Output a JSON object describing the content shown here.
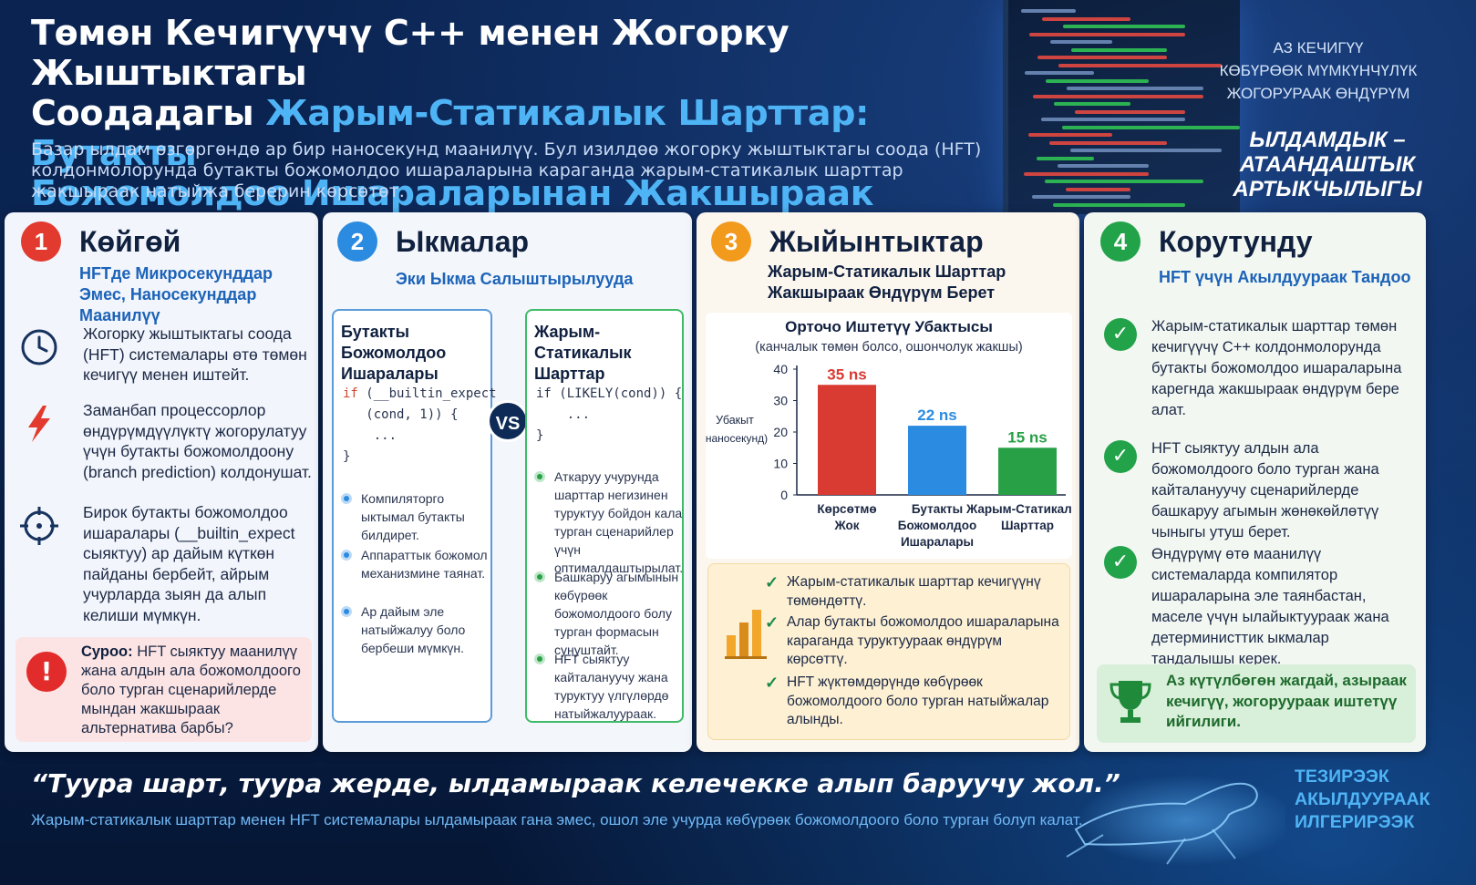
{
  "header": {
    "title_line1": "Төмөн Кечигүүчү C++ менен Жогорку Жыштыктагы",
    "title_line2_plain": "Соодадагы ",
    "title_line2_highlight": "Жарым-Статикалык Шарттар: Бутакты",
    "title_line3_highlight": "Божомолдоо  Ишараларынан Жакшыраак",
    "subtitle": "Базар ылдам өзгөргөндө ар бир наносекунд маанилүү. Бул изилдөө жогорку жыштыктагы соода (HFT) колдонмолорунда бутакты божомолдоо ишараларына караганда жарым-статикалык шарттар жакшыраак натыйжа берерин көрсөтөт."
  },
  "side": {
    "line1": "АЗ КЕЧИГҮҮ",
    "line2": "КӨБҮРӨӨК МҮМКҮНЧҮЛҮК",
    "line3": "ЖОГОРУРААК ӨНДҮРҮМ",
    "speed1": "ЫЛДАМДЫК –",
    "speed2": "АТААНДАШТЫК",
    "speed3": "АРТЫКЧЫЛЫГЫ"
  },
  "panel1": {
    "number": "1",
    "title": "Көйгөй",
    "subtitle": "HFTде Микросекунддар Эмес, Наносекунддар Маанилүү",
    "items": [
      {
        "icon": "clock-icon",
        "text": "Жогорку жыштыктагы соода (HFT) системалары өтө төмөн кечигүү менен иштейт."
      },
      {
        "icon": "lightning-icon",
        "text": "Заманбап процессорлор өндүрүмдүүлүктү жогорулатуу үчүн бутакты божомолдоону (branch prediction) колдонушат."
      },
      {
        "icon": "target-icon",
        "text": "Бирок бутакты божомолдоо ишаралары (__builtin_expect сыяктуу) ар дайым күткөн пайданы бербейт, айрым учурларда зыян да алып келиши мүмкүн."
      }
    ],
    "question_label": "Суроо:",
    "question_text": " HFT сыяктуу маанилүү жана алдын ала божомолдоого боло турган сценарийлерде мындан жакшыраак альтернатива барбы?"
  },
  "panel2": {
    "number": "2",
    "title": "Ыкмалар",
    "subtitle": "Эки Ыкма Салыштырылууда",
    "vs": "VS",
    "left": {
      "title": "Бутакты Божомолдоо Ишаралары",
      "code_kw": "if",
      "code_l1": " (__builtin_expect",
      "code_l2": "   (cond, 1)) {",
      "code_l3": "    ...",
      "code_l4": "}",
      "bullets": [
        "Компиляторго ыктымал бутакты билдирет.",
        "Аппараттык божомол механизмине таянат.",
        "Ар дайым эле натыйжалуу боло бербеши мүмкүн."
      ]
    },
    "right": {
      "title": "Жарым-Статикалык Шарттар",
      "code_l1": "if (LIKELY(cond)) {",
      "code_l2": "    ...",
      "code_l3": "}",
      "bullets": [
        "Аткаруу учурунда шарттар негизинен туруктуу бойдон кала турган сценарийлер үчүн оптималдаштырылат.",
        "Башкаруу агымынын көбүрөөк божомолдоого болу турган формасын сунуштайт.",
        "HFT сыяктуу кайталануучу жана туруктуу үлгүлөрдө натыйжалуураак."
      ]
    }
  },
  "panel3": {
    "number": "3",
    "title": "Жыйынтыктар",
    "subtitle": "Жарым-Статикалык Шарттар Жакшыраак Өндүрүм Берет",
    "summary": [
      "Жарым-статикалык шарттар кечигүүнү төмөндөттү.",
      "Алар бутакты божомолдоо ишараларына караганда туруктуураак өндүрүм көрсөттү.",
      "HFT жүктөмдөрүндө көбүрөөк божомолдоого боло турган натыйжалар алынды."
    ]
  },
  "chart_data": {
    "type": "bar",
    "title": "Орточо Иштетүү Убактысы",
    "subtitle": "(канчалык төмөн болсо, ошончолук жакшы)",
    "ylabel_line1": "Убакыт",
    "ylabel_line2": "(наносекунд)",
    "categories": [
      "Көрсөтмө Жок",
      "Бутакты Божомолдоо Ишаралары",
      "Жарым-Статикалык Шарттар"
    ],
    "category_lines": [
      [
        "Көрсөтмө",
        "Жок"
      ],
      [
        "Бутакты",
        "Божомолдоо",
        "Ишаралары"
      ],
      [
        "Жарым-Статикалык",
        "Шарттар"
      ]
    ],
    "values": [
      35,
      22,
      15
    ],
    "data_labels": [
      "35 ns",
      "22 ns",
      "15 ns"
    ],
    "colors": [
      "#d93a32",
      "#2b8be0",
      "#27a046"
    ],
    "yticks": [
      "0",
      "10",
      "20",
      "30",
      "40"
    ],
    "ylim": [
      0,
      40
    ],
    "grid": false
  },
  "panel4": {
    "number": "4",
    "title": "Корутунду",
    "subtitle": "HFT үчүн Акылдуураак Тандоо",
    "items": [
      "Жарым-статикалык шарттар төмөн кечигүүчү C++ колдонмолорунда бутакты божомолдоо ишараларына карегнда жакшыраак өндүрүм бере алат.",
      "HFT сыяктуу алдын ала божомолдоого боло турган жана кайталануучу сценарийлерде башкаруу агымын жөнөкөйлөтүү чыныгы утуш берет.",
      "Өндүрүмү өтө маанилүү системаларда компилятор ишараларына эле таянбастан, маселе үчүн ылайыктуураак жана детерминисттик ыкмалар тандалышы керек."
    ],
    "win": "Аз күтүлбөгөн жагдай, азыраак кечигүү, жогоруураак иштетүү ийгилиги."
  },
  "footer": {
    "quote": "“Туура шарт, туура жерде, ылдамыраак келечекке алып баруучу жол.”",
    "quote_sub": "Жарым-статикалык шарттар менен HFT системалары ылдамыраак гана эмес, ошол эле учурда көбүрөөк божомолдоого боло турган болуп калат.",
    "right1": "ТЕЗИРЭЭК",
    "right2": "АКЫЛДУУРААК",
    "right3": "ИЛГЕРИРЭЭК"
  },
  "colors": {
    "badge1": "#e23a2e",
    "badge2": "#2b8be0",
    "badge3": "#f29a1c",
    "badge4": "#22a34a",
    "accent": "#4fb4f5"
  }
}
